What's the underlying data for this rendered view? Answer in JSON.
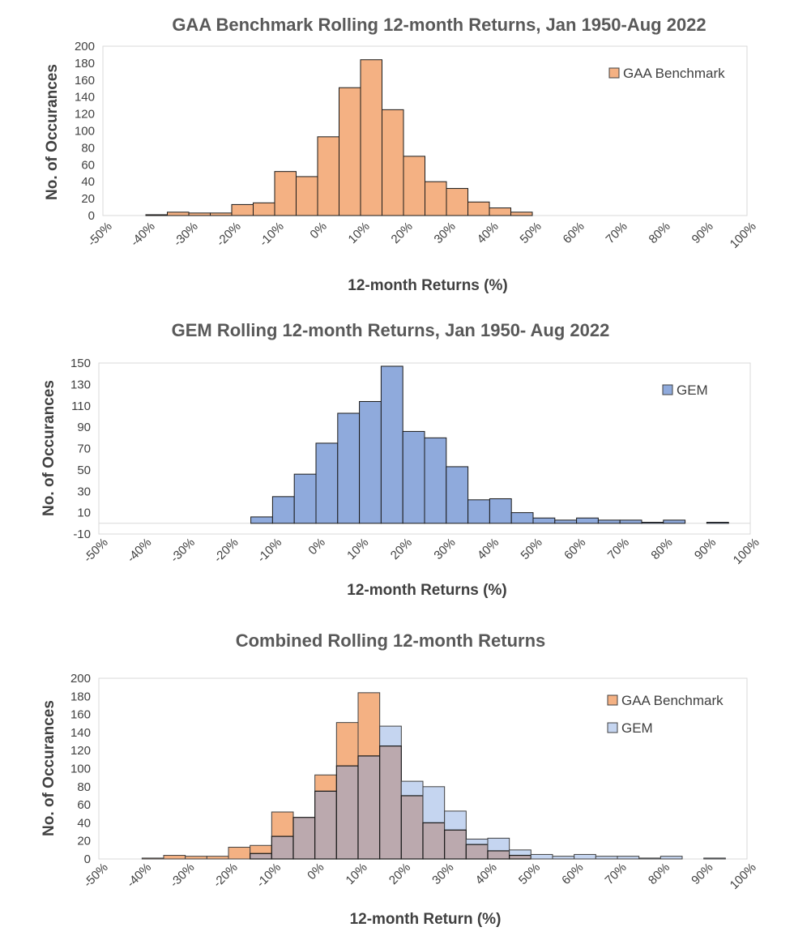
{
  "colors": {
    "gaa": "#F4B183",
    "gem": "#8FAADC",
    "gem_light": "#C5D5F0",
    "overlap": "#BBA9AE",
    "plot_border": "#D9D9D9",
    "text": "#404040"
  },
  "chart_data": [
    {
      "type": "bar",
      "title": "GAA Benchmark Rolling 12-month Returns, Jan 1950-Aug 2022",
      "xlabel": "12-month Returns (%)",
      "ylabel": "No. of Occurances",
      "ylim": [
        0,
        200
      ],
      "yticks": [
        "0",
        "20",
        "40",
        "60",
        "80",
        "100",
        "120",
        "140",
        "160",
        "180",
        "200"
      ],
      "xticks": [
        "-50%",
        "-40%",
        "-30%",
        "-20%",
        "-10%",
        "0%",
        "10%",
        "20%",
        "30%",
        "40%",
        "50%",
        "60%",
        "70%",
        "80%",
        "90%",
        "100%"
      ],
      "legend_position": "top-right",
      "bin_start": -40,
      "bin_width": 5,
      "series": [
        {
          "name": "GAA Benchmark",
          "color": "#F4B183",
          "values": [
            1,
            4,
            3,
            3,
            13,
            15,
            52,
            46,
            93,
            151,
            184,
            125,
            70,
            40,
            32,
            16,
            9,
            4
          ]
        }
      ]
    },
    {
      "type": "bar",
      "title": "GEM Rolling 12-month Returns, Jan 1950- Aug 2022",
      "xlabel": "12-month Returns (%)",
      "ylabel": "No. of Occurances",
      "ylim": [
        -10,
        150
      ],
      "yticks": [
        "-10",
        "10",
        "30",
        "50",
        "70",
        "90",
        "110",
        "130",
        "150"
      ],
      "xticks": [
        "-50%",
        "-40%",
        "-30%",
        "-20%",
        "-10%",
        "0%",
        "10%",
        "20%",
        "30%",
        "40%",
        "50%",
        "60%",
        "70%",
        "80%",
        "90%",
        "100%"
      ],
      "legend_position": "top-right",
      "bin_start": -15,
      "bin_width": 5,
      "series": [
        {
          "name": "GEM",
          "color": "#8FAADC",
          "values": [
            6,
            25,
            46,
            75,
            103,
            114,
            147,
            86,
            80,
            53,
            22,
            23,
            10,
            5,
            3,
            5,
            3,
            3,
            1,
            3,
            0,
            1
          ]
        }
      ]
    },
    {
      "type": "bar",
      "title": "Combined Rolling 12-month Returns",
      "xlabel": "12-month Return (%)",
      "ylabel": "No. of Occurances",
      "ylim": [
        0,
        200
      ],
      "yticks": [
        "0",
        "20",
        "40",
        "60",
        "80",
        "100",
        "120",
        "140",
        "160",
        "180",
        "200"
      ],
      "xticks": [
        "-50%",
        "-40%",
        "-30%",
        "-20%",
        "-10%",
        "0%",
        "10%",
        "20%",
        "30%",
        "40%",
        "50%",
        "60%",
        "70%",
        "80%",
        "90%",
        "100%"
      ],
      "legend_position": "top-right",
      "bin_start": -40,
      "bin_width": 5,
      "series": [
        {
          "name": "GAA Benchmark",
          "color": "#F4B183",
          "values": [
            1,
            4,
            3,
            3,
            13,
            15,
            52,
            46,
            93,
            151,
            184,
            125,
            70,
            40,
            32,
            16,
            9,
            4,
            0,
            0,
            0,
            0,
            0,
            0,
            0,
            0,
            0
          ]
        },
        {
          "name": "GEM",
          "color": "#C5D5F0",
          "values": [
            0,
            0,
            0,
            0,
            0,
            6,
            25,
            46,
            75,
            103,
            114,
            147,
            86,
            80,
            53,
            22,
            23,
            10,
            5,
            3,
            5,
            3,
            3,
            1,
            3,
            0,
            1
          ]
        }
      ]
    }
  ]
}
